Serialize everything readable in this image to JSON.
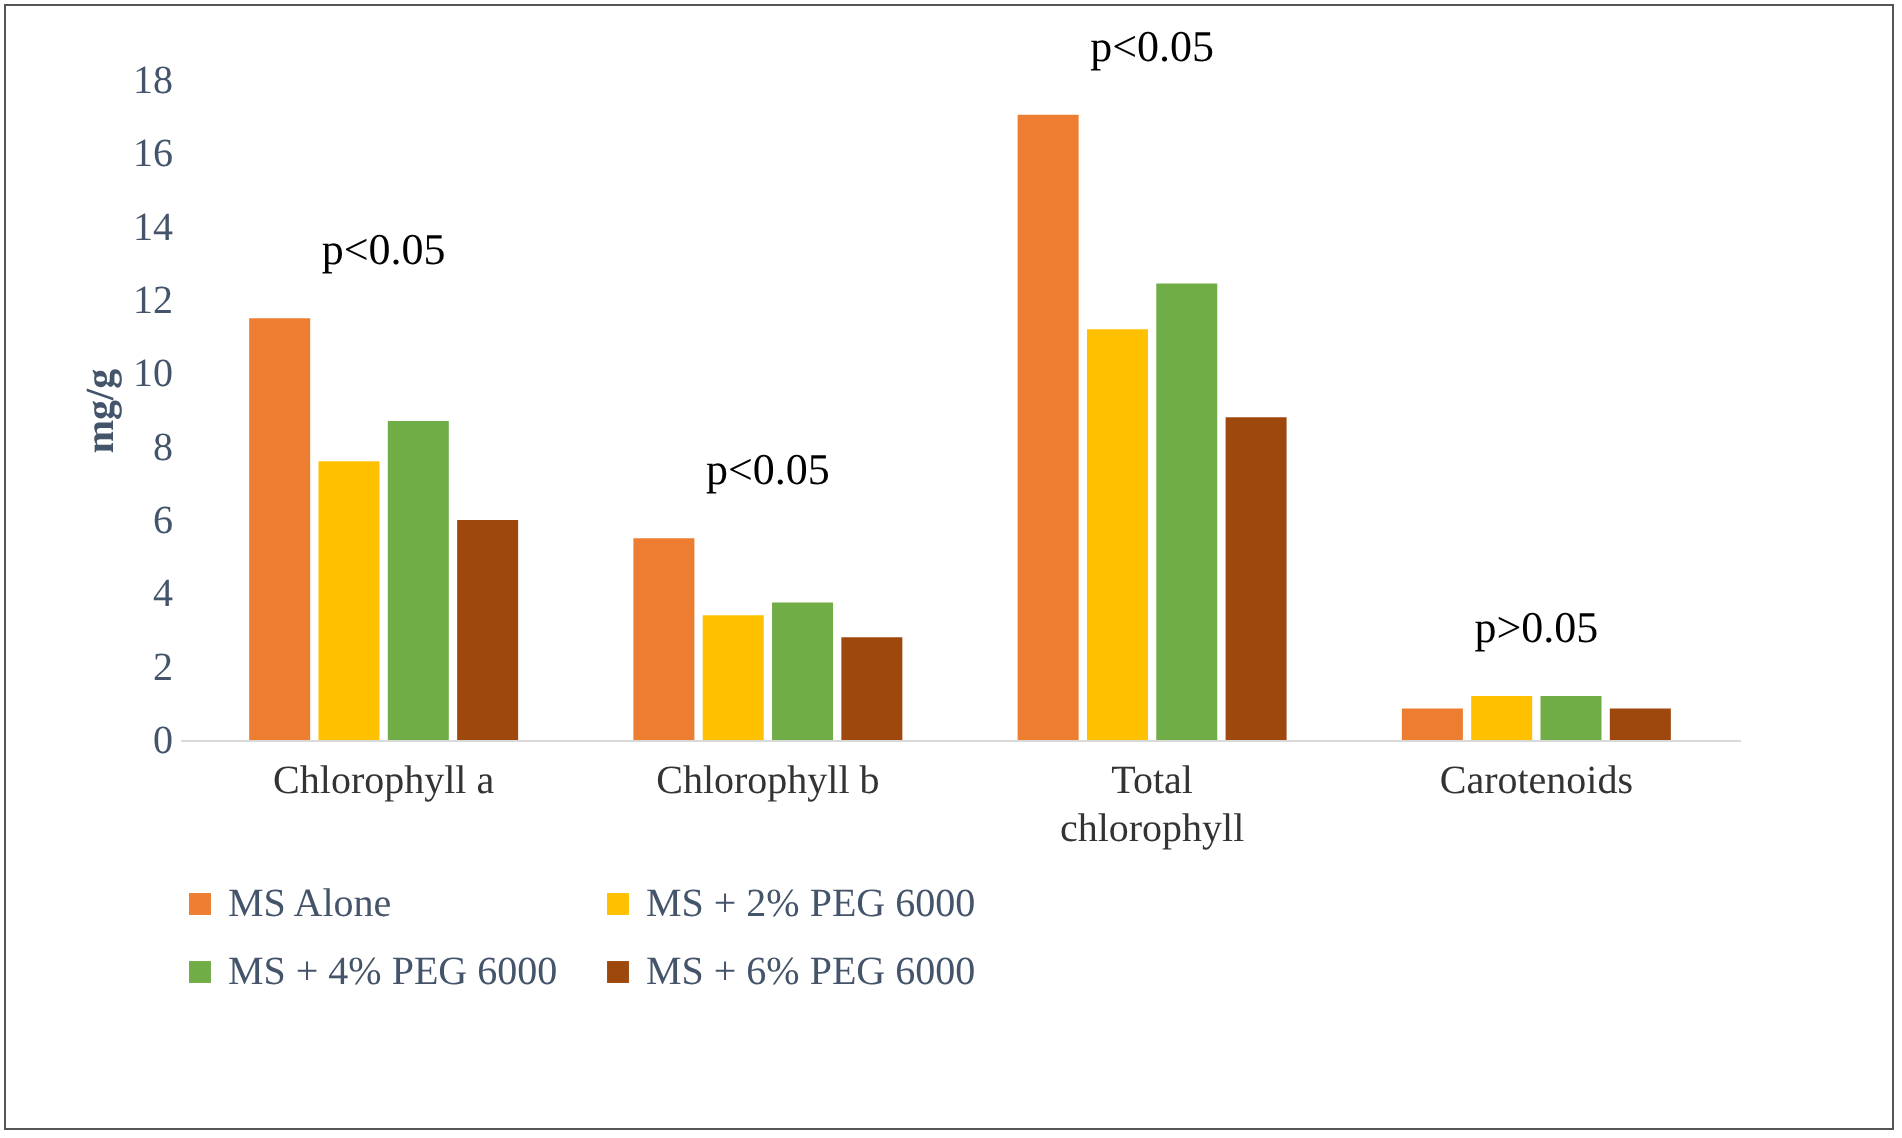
{
  "chart_data": {
    "type": "bar",
    "ylabel": "mg/g",
    "categories": [
      "Chlorophyll a",
      "Chlorophyll b",
      "Total chlorophyll",
      "Carotenoids"
    ],
    "series": [
      {
        "name": "MS Alone",
        "color": "#ed7d31",
        "values": [
          11.5,
          5.5,
          17.05,
          0.86
        ]
      },
      {
        "name": "MS + 2% PEG 6000",
        "color": "#ffc000",
        "values": [
          7.6,
          3.4,
          11.2,
          1.2
        ]
      },
      {
        "name": "MS + 4% PEG 6000",
        "color": "#70ad47",
        "values": [
          8.7,
          3.75,
          12.45,
          1.2
        ]
      },
      {
        "name": "MS + 6% PEG 6000",
        "color": "#9e480e",
        "values": [
          6.0,
          2.8,
          8.8,
          0.86
        ]
      }
    ],
    "ylim": [
      0,
      18
    ],
    "yticks": [
      0,
      2,
      4,
      6,
      8,
      10,
      12,
      14,
      16,
      18
    ],
    "grid": false,
    "legend": "bottom",
    "annotations": [
      "p<0.05",
      "p<0.05",
      "p<0.05",
      "p>0.05"
    ]
  }
}
